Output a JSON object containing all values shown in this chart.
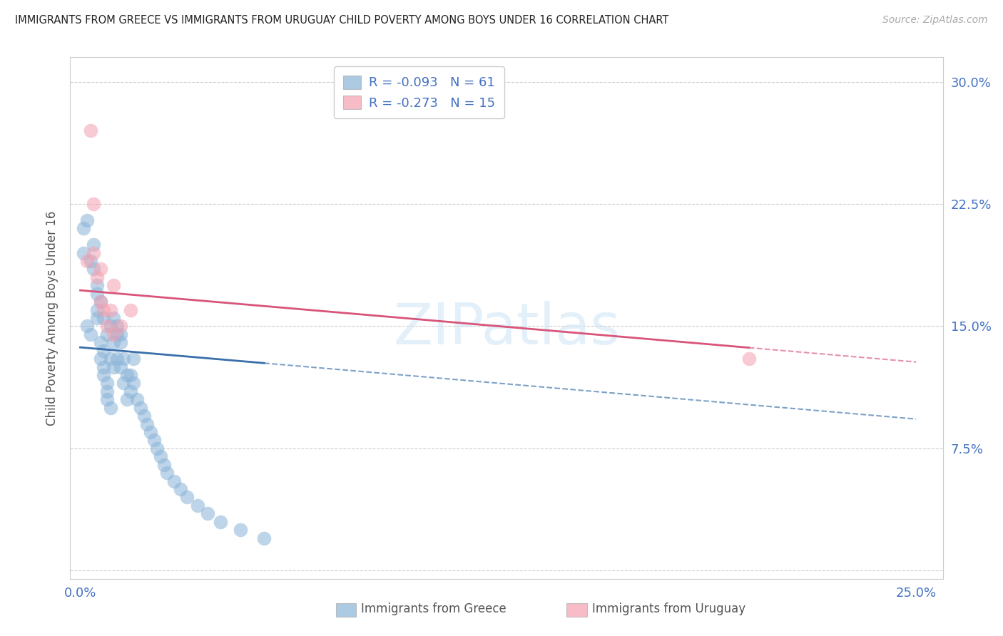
{
  "title": "IMMIGRANTS FROM GREECE VS IMMIGRANTS FROM URUGUAY CHILD POVERTY AMONG BOYS UNDER 16 CORRELATION CHART",
  "source": "Source: ZipAtlas.com",
  "ylabel": "Child Poverty Among Boys Under 16",
  "greece_color": "#8ab4d8",
  "uruguay_color": "#f4a0b0",
  "greece_line_color": "#3a6faa",
  "uruguay_line_color": "#d9547a",
  "greece_R": -0.093,
  "greece_N": 61,
  "uruguay_R": -0.273,
  "uruguay_N": 15,
  "watermark": "ZIPatlas",
  "xlim": [
    0.0,
    0.25
  ],
  "ylim": [
    0.0,
    0.3
  ],
  "greece_x": [
    0.001,
    0.001,
    0.002,
    0.002,
    0.003,
    0.003,
    0.004,
    0.004,
    0.005,
    0.005,
    0.005,
    0.005,
    0.006,
    0.006,
    0.006,
    0.007,
    0.007,
    0.007,
    0.007,
    0.008,
    0.008,
    0.008,
    0.008,
    0.009,
    0.009,
    0.009,
    0.01,
    0.01,
    0.01,
    0.011,
    0.011,
    0.011,
    0.012,
    0.012,
    0.012,
    0.013,
    0.013,
    0.014,
    0.014,
    0.015,
    0.015,
    0.016,
    0.016,
    0.017,
    0.018,
    0.019,
    0.02,
    0.021,
    0.022,
    0.023,
    0.024,
    0.025,
    0.026,
    0.028,
    0.03,
    0.032,
    0.035,
    0.038,
    0.042,
    0.048,
    0.055
  ],
  "greece_y": [
    0.21,
    0.195,
    0.215,
    0.15,
    0.145,
    0.19,
    0.185,
    0.2,
    0.17,
    0.155,
    0.16,
    0.175,
    0.14,
    0.13,
    0.165,
    0.135,
    0.12,
    0.125,
    0.155,
    0.115,
    0.11,
    0.105,
    0.145,
    0.1,
    0.15,
    0.13,
    0.125,
    0.155,
    0.14,
    0.15,
    0.145,
    0.13,
    0.145,
    0.14,
    0.125,
    0.13,
    0.115,
    0.12,
    0.105,
    0.12,
    0.11,
    0.115,
    0.13,
    0.105,
    0.1,
    0.095,
    0.09,
    0.085,
    0.08,
    0.075,
    0.07,
    0.065,
    0.06,
    0.055,
    0.05,
    0.045,
    0.04,
    0.035,
    0.03,
    0.025,
    0.02
  ],
  "uruguay_x": [
    0.002,
    0.003,
    0.004,
    0.004,
    0.005,
    0.006,
    0.006,
    0.007,
    0.008,
    0.009,
    0.01,
    0.01,
    0.012,
    0.015,
    0.2
  ],
  "uruguay_y": [
    0.19,
    0.27,
    0.225,
    0.195,
    0.18,
    0.165,
    0.185,
    0.16,
    0.15,
    0.16,
    0.145,
    0.175,
    0.15,
    0.16,
    0.13
  ]
}
